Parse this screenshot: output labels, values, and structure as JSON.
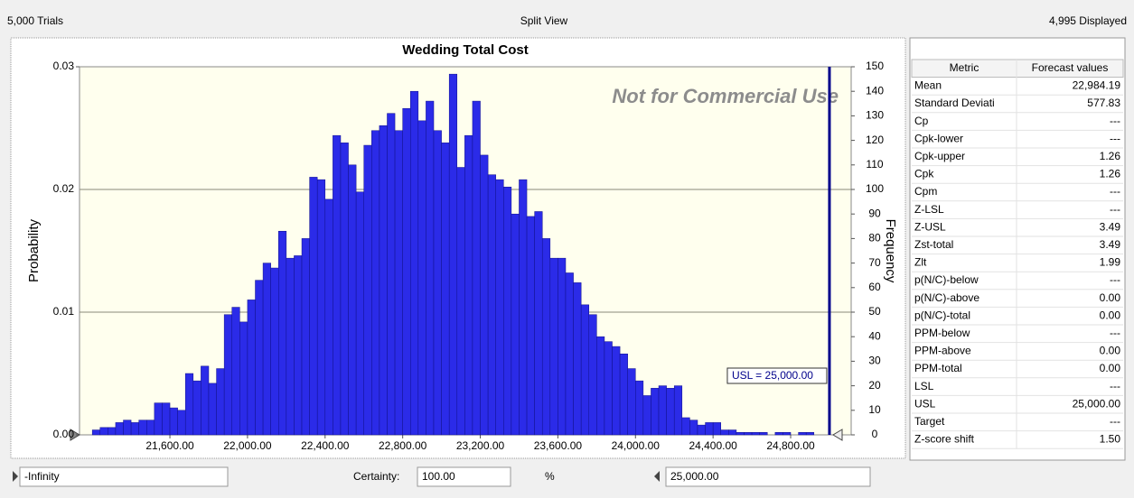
{
  "header": {
    "trials": "5,000 Trials",
    "view": "Split View",
    "displayed": "4,995 Displayed"
  },
  "chart_data": {
    "type": "histogram",
    "title": "Wedding Total Cost",
    "ylabel": "Probability",
    "y2label": "Frequency",
    "annotation": "Not for Commercial Use",
    "usl": {
      "value": 25000,
      "label": "USL = 25,000.00",
      "color": "#00008b"
    },
    "bins": [
      21200,
      21240,
      21280,
      21320,
      21360,
      21400,
      21440,
      21480,
      21520,
      21560,
      21600,
      21640,
      21680,
      21720,
      21760,
      21800,
      21840,
      21880,
      21920,
      21960,
      22000,
      22040,
      22080,
      22120,
      22160,
      22200,
      22240,
      22280,
      22320,
      22360,
      22400,
      22440,
      22480,
      22520,
      22560,
      22600,
      22640,
      22680,
      22720,
      22760,
      22800,
      22840,
      22880,
      22920,
      22960,
      23000,
      23040,
      23080,
      23120,
      23160,
      23200,
      23240,
      23280,
      23320,
      23360,
      23400,
      23440,
      23480,
      23520,
      23560,
      23600,
      23640,
      23680,
      23720,
      23760,
      23800,
      23840,
      23880,
      23920,
      23960,
      24000,
      24040,
      24080,
      24120,
      24160,
      24200,
      24240,
      24280,
      24320,
      24360,
      24400,
      24440,
      24480,
      24520,
      24560,
      24600,
      24640,
      24680,
      24720,
      24760,
      24800,
      24840,
      24880,
      24920
    ],
    "series": [
      {
        "color": "#2b2be8",
        "axis": "y2",
        "values": [
          2,
          3,
          3,
          5,
          6,
          5,
          6,
          6,
          13,
          13,
          11,
          10,
          25,
          22,
          28,
          21,
          27,
          49,
          52,
          46,
          55,
          63,
          70,
          68,
          83,
          72,
          73,
          80,
          105,
          104,
          96,
          122,
          119,
          110,
          99,
          118,
          124,
          126,
          131,
          124,
          133,
          140,
          128,
          136,
          124,
          119,
          147,
          109,
          122,
          136,
          114,
          106,
          104,
          101,
          90,
          104,
          89,
          91,
          80,
          72,
          72,
          66,
          62,
          53,
          49,
          40,
          38,
          36,
          33,
          27,
          22,
          16,
          19,
          20,
          19,
          20,
          7,
          6,
          4,
          5,
          5,
          2,
          2,
          1,
          1,
          1,
          1,
          0,
          1,
          1,
          0,
          1,
          1
        ]
      }
    ],
    "xlim": [
      21134,
      25112
    ],
    "xticks": [
      {
        "value": 21600,
        "label": "21,600.00"
      },
      {
        "value": 22000,
        "label": "22,000.00"
      },
      {
        "value": 22400,
        "label": "22,400.00"
      },
      {
        "value": 22800,
        "label": "22,800.00"
      },
      {
        "value": 23200,
        "label": "23,200.00"
      },
      {
        "value": 23600,
        "label": "23,600.00"
      },
      {
        "value": 24000,
        "label": "24,000.00"
      },
      {
        "value": 24400,
        "label": "24,400.00"
      },
      {
        "value": 24800,
        "label": "24,800.00"
      }
    ],
    "ylim": [
      0,
      0.03
    ],
    "yticks": [
      {
        "value": 0,
        "label": "0.00"
      },
      0.01,
      0.02,
      0.03
    ],
    "y2lim": [
      0,
      150
    ],
    "y2ticks": [
      0,
      10,
      20,
      30,
      40,
      50,
      60,
      70,
      80,
      90,
      100,
      110,
      120,
      130,
      140,
      150
    ],
    "grid": true
  },
  "metrics": {
    "columns": [
      "Metric",
      "Forecast values"
    ],
    "rows": [
      [
        "Mean",
        "22,984.19"
      ],
      [
        "Standard Deviati",
        "577.83"
      ],
      [
        "Cp",
        "---"
      ],
      [
        "Cpk-lower",
        "---"
      ],
      [
        "Cpk-upper",
        "1.26"
      ],
      [
        "Cpk",
        "1.26"
      ],
      [
        "Cpm",
        "---"
      ],
      [
        "Z-LSL",
        "---"
      ],
      [
        "Z-USL",
        "3.49"
      ],
      [
        "Zst-total",
        "3.49"
      ],
      [
        "Zlt",
        "1.99"
      ],
      [
        "p(N/C)-below",
        "---"
      ],
      [
        "p(N/C)-above",
        "0.00"
      ],
      [
        "p(N/C)-total",
        "0.00"
      ],
      [
        "PPM-below",
        "---"
      ],
      [
        "PPM-above",
        "0.00"
      ],
      [
        "PPM-total",
        "0.00"
      ],
      [
        "LSL",
        "---"
      ],
      [
        "USL",
        "25,000.00"
      ],
      [
        "Target",
        "---"
      ],
      [
        "Z-score shift",
        "1.50"
      ]
    ]
  },
  "footer": {
    "lower": "-Infinity",
    "certainty_label": "Certainty:",
    "certainty": "100.00",
    "percent": "%",
    "upper": "25,000.00"
  }
}
